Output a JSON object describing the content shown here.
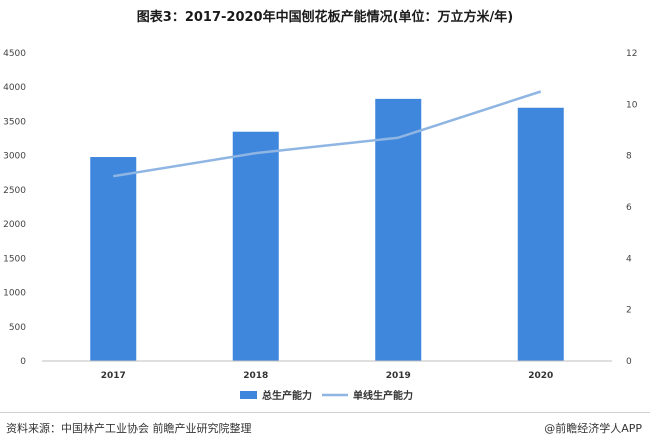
{
  "title": "图表3：2017-2020年中国刨花板产能情况(单位：万立方米/年)",
  "chart_data": {
    "type": "bar",
    "categories": [
      "2017",
      "2018",
      "2019",
      "2020"
    ],
    "series": [
      {
        "name": "总生产能力",
        "type": "bar",
        "axis": "left",
        "values": [
          2980,
          3350,
          3830,
          3700
        ],
        "color": "#3f86dd"
      },
      {
        "name": "单线生产能力",
        "type": "line",
        "axis": "right",
        "values": [
          7.2,
          8.1,
          8.7,
          10.5
        ],
        "color": "#8fb5e3"
      }
    ],
    "y_left": {
      "min": 0,
      "max": 4500,
      "ticks": [
        "0",
        "500",
        "1000",
        "1500",
        "2000",
        "2500",
        "3000",
        "3500",
        "4000",
        "4500"
      ]
    },
    "y_right": {
      "min": 0,
      "max": 12,
      "ticks": [
        "0",
        "2",
        "4",
        "6",
        "8",
        "10",
        "12"
      ]
    },
    "legend_position": "bottom-center",
    "grid": false
  },
  "footer": {
    "source": "资料来源：中国林产工业协会 前瞻产业研究院整理",
    "brand": "@前瞻经济学人APP"
  }
}
